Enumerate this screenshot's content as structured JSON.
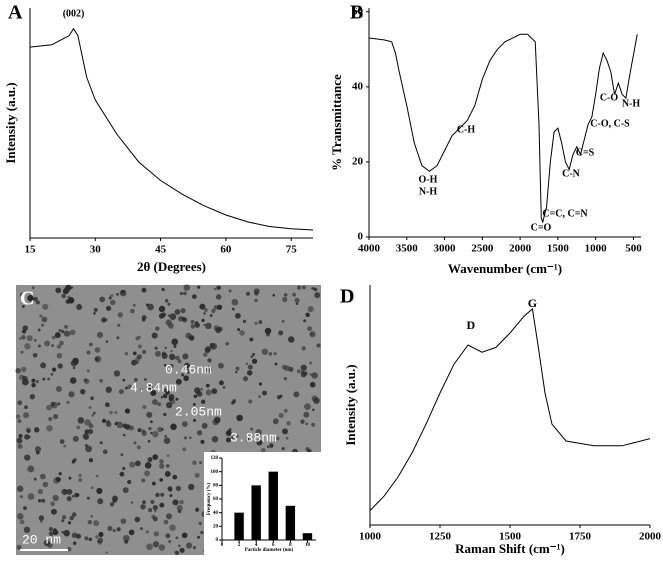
{
  "chart_data": [
    {
      "type": "line",
      "panel_label": "A",
      "xlabel": "2θ (Degrees)",
      "ylabel": "Intensity (a.u.)",
      "annotation": "(002)",
      "annotation_x": 25,
      "x": [
        15,
        20,
        24,
        25,
        26,
        28,
        30,
        35,
        40,
        45,
        50,
        55,
        60,
        65,
        70,
        75,
        80
      ],
      "values": [
        83,
        84,
        88,
        91,
        88,
        70,
        60,
        45,
        33,
        25,
        19,
        14,
        10,
        7,
        5,
        4,
        3.5
      ],
      "color": "#000000",
      "xlim": [
        15,
        80
      ],
      "ylim": [
        0,
        100
      ],
      "xticks": [
        15,
        30,
        45,
        60,
        75
      ]
    },
    {
      "type": "line",
      "panel_label": "B",
      "xlabel": "Wavenumber (cm⁻¹)",
      "ylabel": "% Transmittance",
      "annotations": [
        "O-H",
        "N-H",
        "C-H",
        "C=O",
        "C=C, C=N",
        "C-N",
        "C=S",
        "C-O, C-S",
        "C-O",
        "N-H"
      ],
      "x": [
        4000,
        3800,
        3700,
        3650,
        3600,
        3500,
        3400,
        3300,
        3200,
        3100,
        3000,
        2900,
        2800,
        2700,
        2600,
        2500,
        2400,
        2300,
        2200,
        2100,
        2000,
        1900,
        1800,
        1750,
        1720,
        1700,
        1650,
        1600,
        1550,
        1500,
        1450,
        1400,
        1350,
        1300,
        1250,
        1200,
        1150,
        1100,
        1050,
        1000,
        950,
        900,
        850,
        800,
        750,
        700,
        650,
        600,
        550,
        450
      ],
      "values": [
        53,
        52.5,
        52,
        49,
        44,
        35,
        25,
        19,
        17.5,
        19,
        23,
        27,
        29,
        31,
        35,
        42,
        47,
        50,
        52,
        53,
        54,
        54,
        52,
        30,
        5,
        4,
        8,
        20,
        28,
        29,
        25,
        20,
        18,
        22,
        24,
        22,
        26,
        30,
        32,
        38,
        45,
        49,
        47,
        44,
        38,
        41,
        38,
        37,
        43,
        54
      ],
      "color": "#000000",
      "xlim": [
        4000,
        400
      ],
      "ylim": [
        0,
        61
      ],
      "xticks": [
        4000,
        3500,
        3000,
        2500,
        2000,
        1500,
        1000,
        500
      ],
      "yticks": [
        0,
        20,
        40,
        60
      ]
    },
    {
      "type": "bar",
      "xlabel": "Particle diameter (nm)",
      "ylabel": "Frequency (%)",
      "x": [
        2,
        4,
        6,
        8,
        10
      ],
      "values": [
        40,
        80,
        100,
        50,
        10
      ],
      "color": "#000000",
      "xlim": [
        0,
        11
      ],
      "ylim": [
        0,
        120
      ],
      "xticks": [
        0,
        2,
        4,
        6,
        8,
        10
      ],
      "yticks": [
        0,
        20,
        40,
        60,
        80,
        100,
        120
      ]
    },
    {
      "type": "line",
      "panel_label": "D",
      "xlabel": "Raman Shift (cm⁻¹)",
      "ylabel": "Intensity (a.u.)",
      "annotations": [
        "D",
        "G"
      ],
      "annotation_x": [
        1360,
        1580
      ],
      "x": [
        1000,
        1050,
        1100,
        1150,
        1200,
        1250,
        1300,
        1350,
        1400,
        1450,
        1500,
        1550,
        1580,
        1600,
        1625,
        1650,
        1700,
        1750,
        1800,
        1900,
        2000
      ],
      "values": [
        6,
        12,
        20,
        30,
        42,
        55,
        67,
        75,
        72,
        74,
        80,
        87,
        90,
        75,
        55,
        42,
        35,
        34,
        33,
        33,
        36
      ],
      "color": "#000000",
      "xlim": [
        1000,
        2000
      ],
      "ylim": [
        0,
        100
      ],
      "xticks": [
        1000,
        1250,
        1500,
        1750,
        2000
      ]
    }
  ],
  "image_panel": {
    "panel_label": "C",
    "labels": [
      "0.46nm",
      "4.84nm",
      "2.05nm",
      "3.88nm"
    ],
    "scale_bar": "20 nm"
  }
}
